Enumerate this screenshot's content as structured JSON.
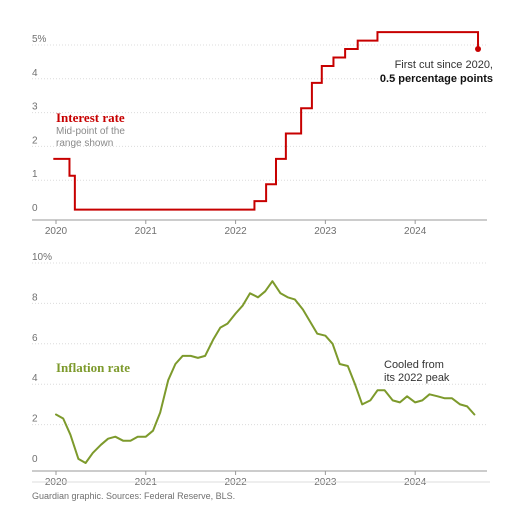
{
  "chart_data": [
    {
      "type": "line",
      "title": "Interest rate",
      "subtitle_lines": [
        "Mid-point of the",
        "range shown"
      ],
      "color": "#c70000",
      "y_ticks": [
        "5%",
        "4",
        "3",
        "2",
        "1",
        "0"
      ],
      "ylim": [
        0,
        5
      ],
      "x_ticks": [
        "2020",
        "2021",
        "2022",
        "2023",
        "2024"
      ],
      "xlim": [
        2020,
        2024.8
      ],
      "step": true,
      "series": [
        {
          "x": [
            2019.97,
            2020.15,
            2020.21,
            2022.21,
            2022.34,
            2022.45,
            2022.56,
            2022.73,
            2022.85,
            2022.96,
            2023.09,
            2023.22,
            2023.36,
            2023.58,
            2024.7
          ],
          "values": [
            1.63,
            1.13,
            0.13,
            0.38,
            0.88,
            1.63,
            2.38,
            3.13,
            3.88,
            4.38,
            4.63,
            4.88,
            5.13,
            5.38,
            4.88
          ]
        }
      ],
      "annotation_lines": [
        "First cut since 2020,",
        "0.5 percentage points"
      ]
    },
    {
      "type": "line",
      "title": "Inflation rate",
      "color": "#7d9a2c",
      "y_ticks": [
        "10%",
        "8",
        "6",
        "4",
        "2",
        "0"
      ],
      "ylim": [
        0,
        10
      ],
      "x_ticks": [
        "2020",
        "2021",
        "2022",
        "2023",
        "2024"
      ],
      "xlim": [
        2020,
        2024.8
      ],
      "series": [
        {
          "x": [
            2020.0,
            2020.08,
            2020.16,
            2020.25,
            2020.33,
            2020.41,
            2020.5,
            2020.58,
            2020.66,
            2020.75,
            2020.83,
            2020.91,
            2021.0,
            2021.08,
            2021.16,
            2021.25,
            2021.33,
            2021.41,
            2021.5,
            2021.58,
            2021.66,
            2021.75,
            2021.83,
            2021.91,
            2022.0,
            2022.08,
            2022.16,
            2022.25,
            2022.33,
            2022.41,
            2022.5,
            2022.58,
            2022.66,
            2022.75,
            2022.83,
            2022.91,
            2023.0,
            2023.08,
            2023.16,
            2023.25,
            2023.33,
            2023.41,
            2023.5,
            2023.58,
            2023.66,
            2023.75,
            2023.83,
            2023.91,
            2024.0,
            2024.08,
            2024.16,
            2024.25,
            2024.33,
            2024.41,
            2024.5,
            2024.58,
            2024.66
          ],
          "values": [
            2.5,
            2.3,
            1.5,
            0.3,
            0.1,
            0.6,
            1.0,
            1.3,
            1.4,
            1.2,
            1.2,
            1.4,
            1.4,
            1.7,
            2.6,
            4.2,
            5.0,
            5.4,
            5.4,
            5.3,
            5.4,
            6.2,
            6.8,
            7.0,
            7.5,
            7.9,
            8.5,
            8.3,
            8.6,
            9.1,
            8.5,
            8.3,
            8.2,
            7.7,
            7.1,
            6.5,
            6.4,
            6.0,
            5.0,
            4.9,
            4.0,
            3.0,
            3.2,
            3.7,
            3.7,
            3.2,
            3.1,
            3.4,
            3.1,
            3.2,
            3.5,
            3.4,
            3.3,
            3.3,
            3.0,
            2.9,
            2.5
          ]
        }
      ],
      "annotation_lines": [
        "Cooled from",
        "its 2022 peak"
      ]
    }
  ],
  "footer": {
    "source": "Guardian graphic. Sources: Federal Reserve, BLS."
  }
}
